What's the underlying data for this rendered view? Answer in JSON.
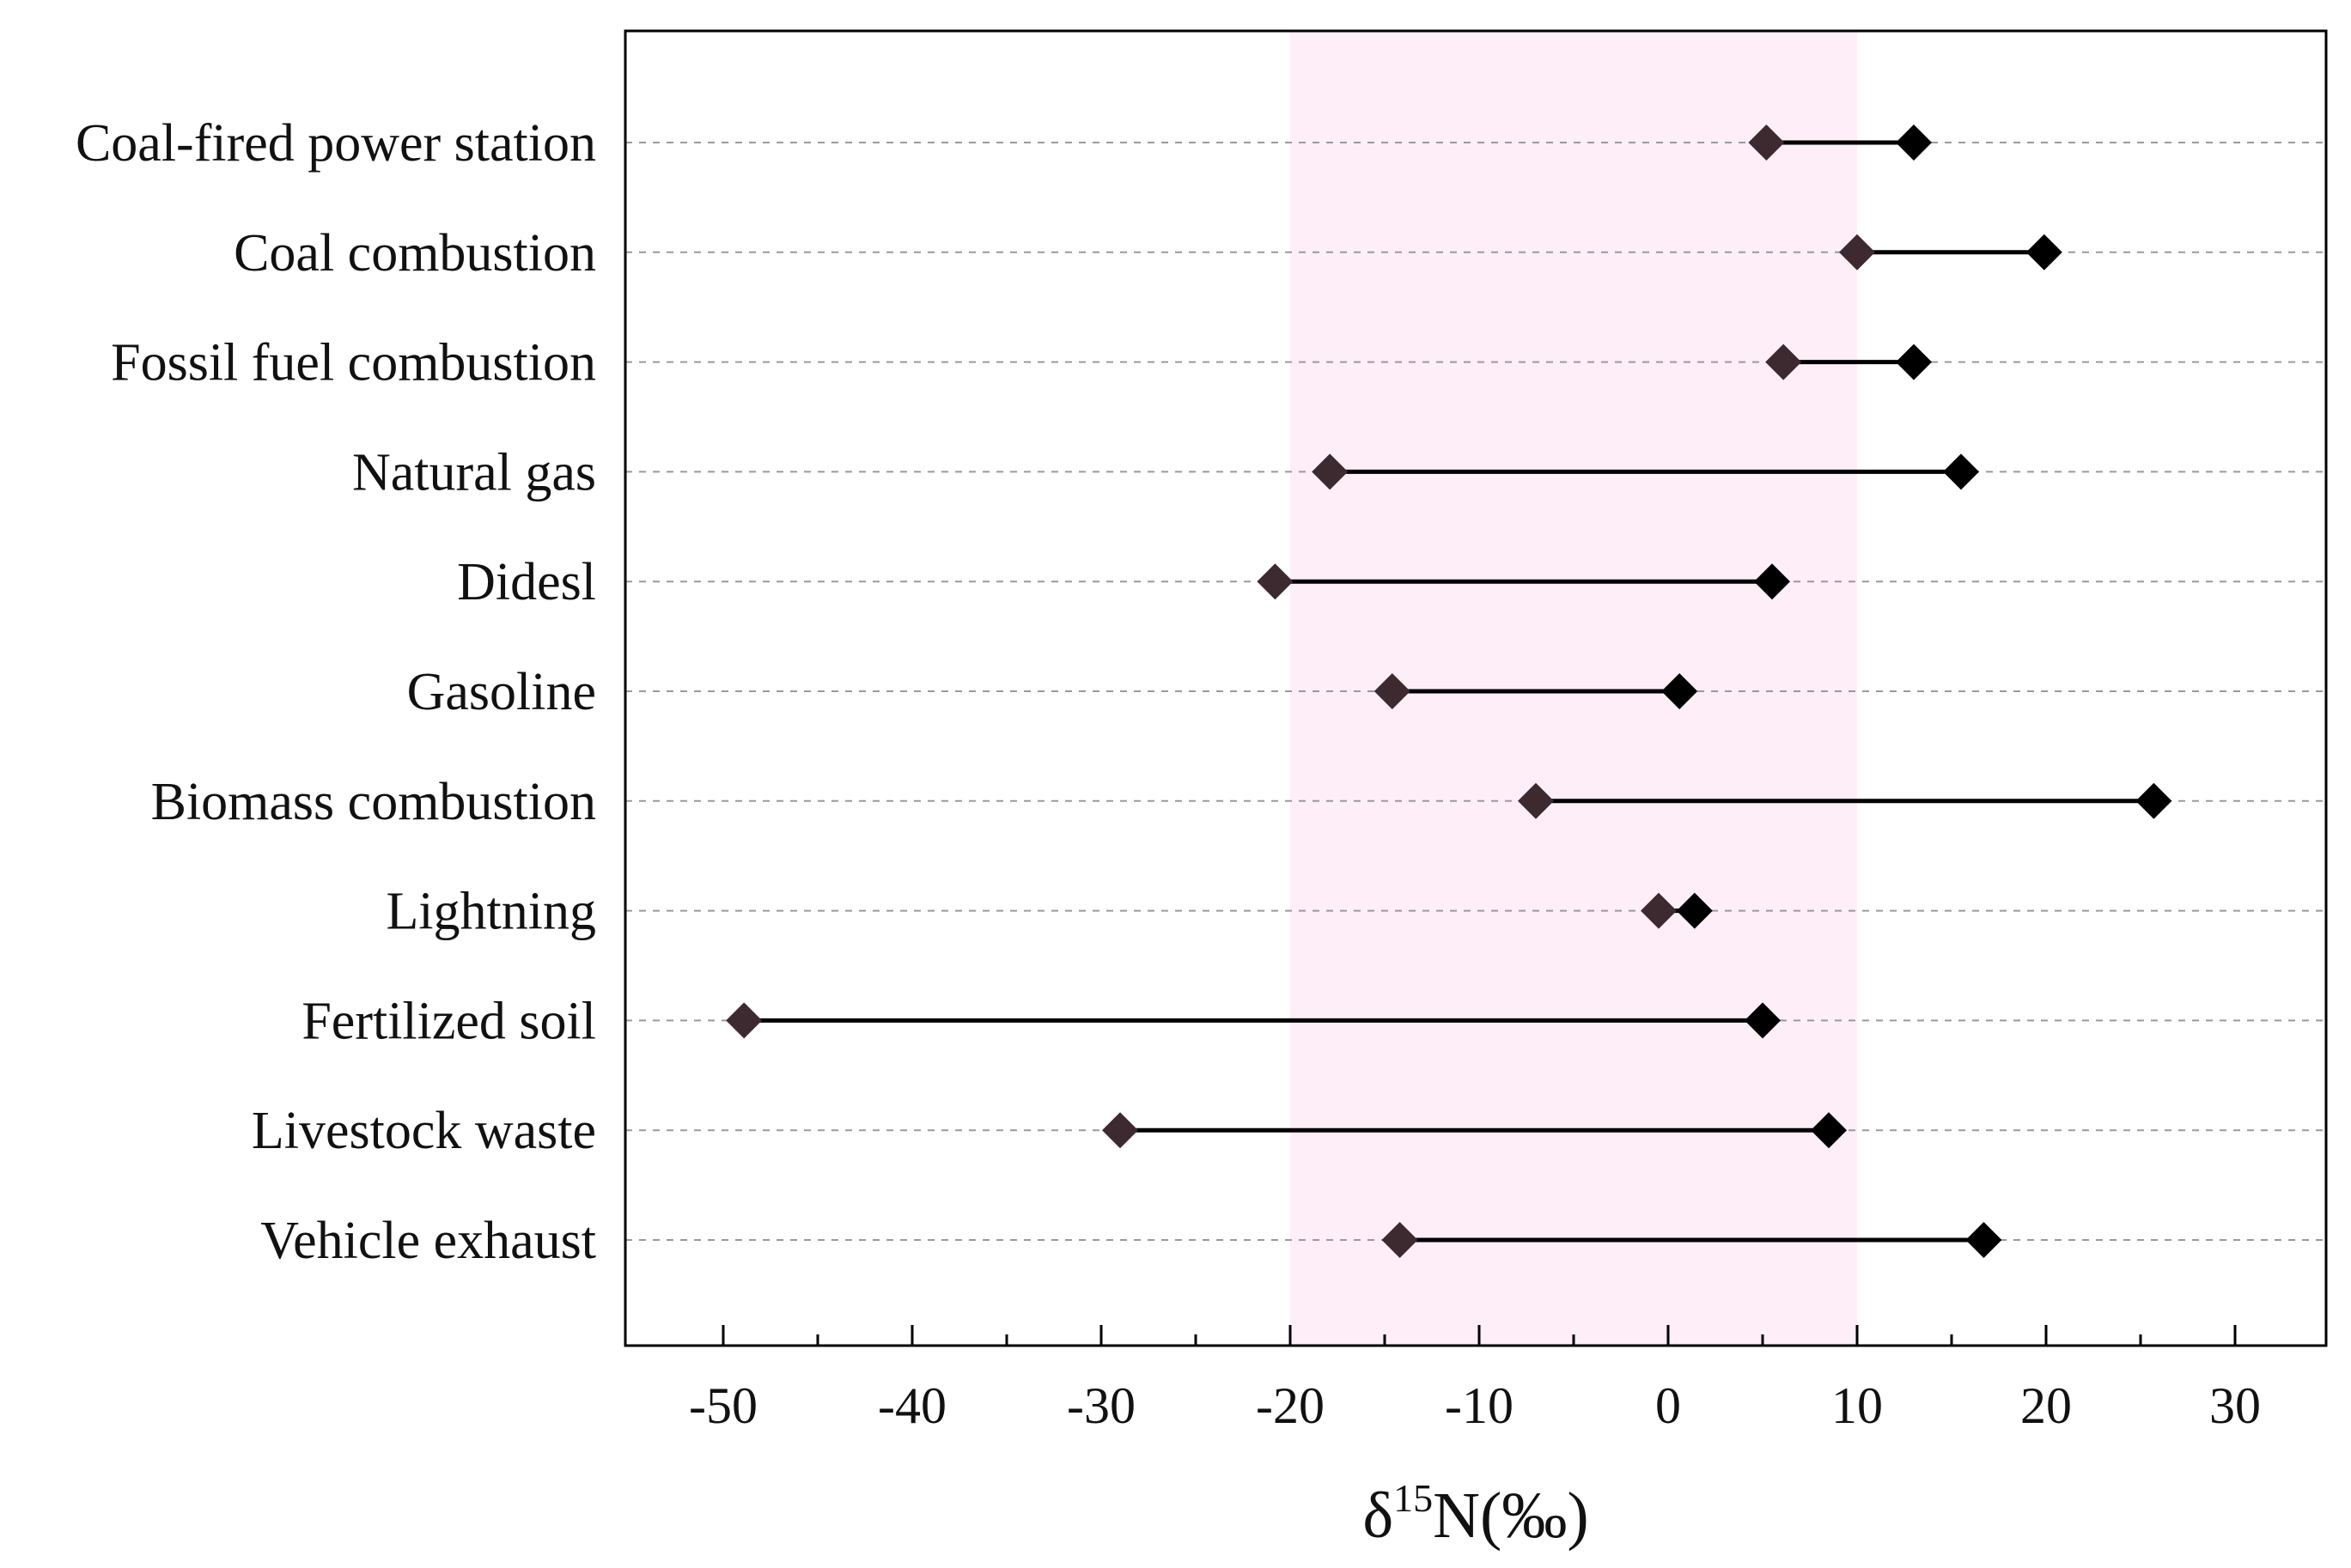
{
  "chart_data": {
    "type": "range",
    "title": "",
    "xlabel_parts": {
      "symbol": "δ",
      "sup": "15",
      "rest": "N(‰)"
    },
    "ylabel": "",
    "xlim": [
      -55,
      35
    ],
    "xticks": [
      -50,
      -40,
      -30,
      -20,
      -10,
      0,
      10,
      20,
      30
    ],
    "xtick_labels": [
      "-50",
      "-40",
      "-30",
      "-20",
      "-10",
      "0",
      "10",
      "20",
      "30"
    ],
    "grid": "horizontal dashed",
    "highlight_band": {
      "from": -20,
      "to": 10,
      "color": "#fdeef7"
    },
    "marker_colors": {
      "low": "#3d2a31",
      "high": "#000000"
    },
    "categories": [
      {
        "label": "Coal-fired power station",
        "min": 5.2,
        "max": 13.0
      },
      {
        "label": "Coal combustion",
        "min": 10.0,
        "max": 19.9
      },
      {
        "label": "Fossil fuel combustion",
        "min": 6.1,
        "max": 13.0
      },
      {
        "label": "Natural gas",
        "min": -17.9,
        "max": 15.5
      },
      {
        "label": "Didesl",
        "min": -20.8,
        "max": 5.5
      },
      {
        "label": "Gasoline",
        "min": -14.6,
        "max": 0.6
      },
      {
        "label": "Biomass combustion",
        "min": -7.0,
        "max": 25.7
      },
      {
        "label": "Lightning",
        "min": -0.5,
        "max": 1.4
      },
      {
        "label": "Fertilized soil",
        "min": -48.9,
        "max": 5.0
      },
      {
        "label": "Livestock waste",
        "min": -29.0,
        "max": 8.5
      },
      {
        "label": "Vehicle exhaust",
        "min": -14.2,
        "max": 16.7
      }
    ]
  }
}
